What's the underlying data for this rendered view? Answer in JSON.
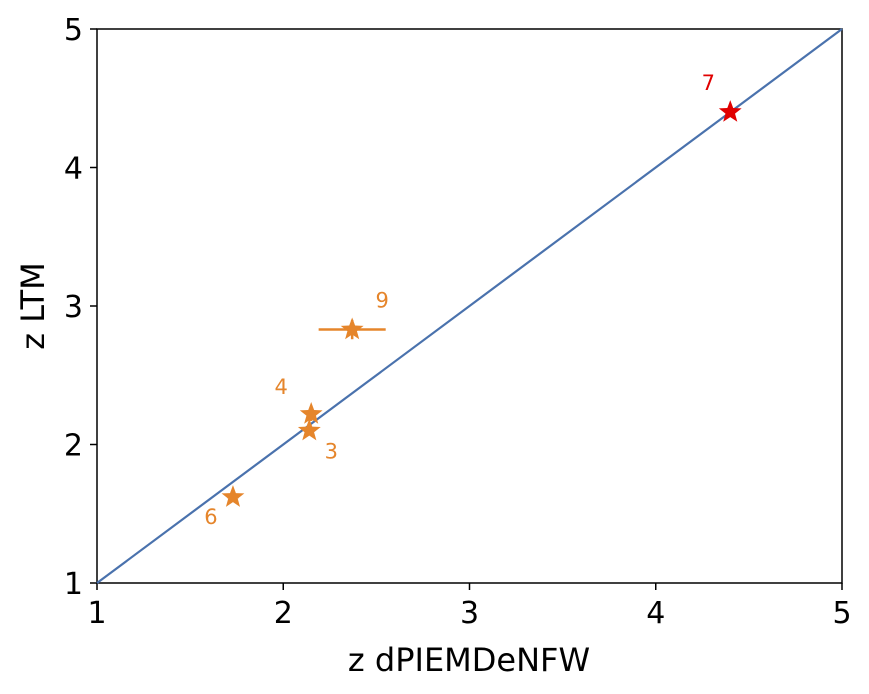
{
  "chart_data": {
    "type": "scatter",
    "xlabel": "z dPIEMDeNFW",
    "ylabel": "z LTM",
    "xlim": [
      1,
      5
    ],
    "ylim": [
      1,
      5
    ],
    "x_ticks": [
      "1",
      "2",
      "3",
      "4",
      "5"
    ],
    "y_ticks": [
      "1",
      "2",
      "3",
      "4",
      "5"
    ],
    "grid": false,
    "marker": "star",
    "reference_line": {
      "type": "identity",
      "from": [
        1,
        1
      ],
      "to": [
        5,
        5
      ],
      "color": "#4a72ad"
    },
    "points": [
      {
        "label": "3",
        "x": 2.14,
        "y": 2.1,
        "x_err": [
          0.02,
          0.02
        ],
        "y_err": [
          0.02,
          0.02
        ],
        "color": "#e5852b"
      },
      {
        "label": "4",
        "x": 2.15,
        "y": 2.22,
        "x_err": [
          0.02,
          0.02
        ],
        "y_err": [
          0.05,
          0.05
        ],
        "color": "#e5852b"
      },
      {
        "label": "6",
        "x": 1.73,
        "y": 1.62,
        "x_err": [
          0.03,
          0.03
        ],
        "y_err": [
          0.02,
          0.02
        ],
        "color": "#e5852b"
      },
      {
        "label": "7",
        "x": 4.4,
        "y": 4.4,
        "x_err": [
          0,
          0
        ],
        "y_err": [
          0,
          0
        ],
        "color": "#e00000"
      },
      {
        "label": "9",
        "x": 2.37,
        "y": 2.83,
        "x_err": [
          0.18,
          0.18
        ],
        "y_err": [
          0.07,
          0.07
        ],
        "color": "#e5852b"
      }
    ]
  }
}
